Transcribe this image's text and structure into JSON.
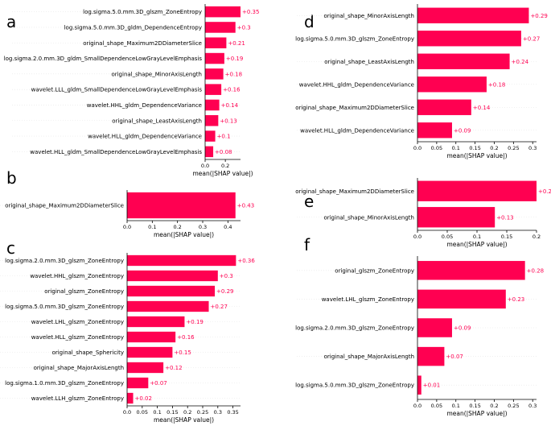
{
  "colors": {
    "bar": "#ff0051",
    "value_text": "#ff0051",
    "axis": "#000000",
    "row_line": "#e6e6e6"
  },
  "chart_data": [
    {
      "id": "a",
      "letter": "a",
      "type": "bar",
      "orientation": "horizontal",
      "xlabel": "mean(|SHAP value|)",
      "xlim": [
        0,
        0.35
      ],
      "xticks": [
        0.0,
        0.2
      ],
      "categories": [
        "log.sigma.5.0.mm.3D_glszm_ZoneEntropy",
        "log.sigma.5.0.mm.3D_gldm_DependenceEntropy",
        "original_shape_Maximum2DDiameterSlice",
        "log.sigma.2.0.mm.3D_gldm_SmallDependenceLowGrayLevelEmphasis",
        "original_shape_MinorAxisLength",
        "wavelet.LLL_gldm_SmallDependenceLowGrayLevelEmphasis",
        "wavelet.HHL_gldm_DependenceVariance",
        "original_shape_LeastAxisLength",
        "wavelet.HLL_gldm_DependenceVariance",
        "wavelet.HLL_gldm_SmallDependenceLowGrayLevelEmphasis"
      ],
      "values": [
        0.35,
        0.3,
        0.21,
        0.19,
        0.18,
        0.16,
        0.14,
        0.13,
        0.1,
        0.08
      ],
      "value_labels": [
        "+0.35",
        "+0.3",
        "+0.21",
        "+0.19",
        "+0.18",
        "+0.16",
        "+0.14",
        "+0.13",
        "+0.1",
        "+0.08"
      ]
    },
    {
      "id": "b",
      "letter": "b",
      "type": "bar",
      "orientation": "horizontal",
      "xlabel": "mean(|SHAP value|)",
      "xlim": [
        0,
        0.45
      ],
      "xticks": [
        0.0,
        0.1,
        0.2,
        0.3,
        0.4
      ],
      "categories": [
        "original_shape_Maximum2DDiameterSlice"
      ],
      "values": [
        0.43
      ],
      "value_labels": [
        "+0.43"
      ]
    },
    {
      "id": "c",
      "letter": "c",
      "type": "bar",
      "orientation": "horizontal",
      "xlabel": "mean(|SHAP value|)",
      "xlim": [
        0,
        0.375
      ],
      "xticks": [
        0.0,
        0.05,
        0.1,
        0.15,
        0.2,
        0.25,
        0.3,
        0.35
      ],
      "categories": [
        "log.sigma.2.0.mm.3D_glszm_ZoneEntropy",
        "wavelet.HHL_glszm_ZoneEntropy",
        "original_glszm_ZoneEntropy",
        "log.sigma.5.0.mm.3D_glszm_ZoneEntropy",
        "wavelet.LHL_glszm_ZoneEntropy",
        "wavelet.HLL_glszm_ZoneEntropy",
        "original_shape_Sphericity",
        "original_shape_MajorAxisLength",
        "log.sigma.1.0.mm.3D_glszm_ZoneEntropy",
        "wavelet.LLH_glszm_ZoneEntropy"
      ],
      "values": [
        0.36,
        0.3,
        0.29,
        0.27,
        0.19,
        0.16,
        0.15,
        0.12,
        0.07,
        0.02
      ],
      "value_labels": [
        "+0.36",
        "+0.3",
        "+0.29",
        "+0.27",
        "+0.19",
        "+0.16",
        "+0.15",
        "+0.12",
        "+0.07",
        "+0.02"
      ]
    },
    {
      "id": "d",
      "letter": "d",
      "type": "bar",
      "orientation": "horizontal",
      "xlabel": "mean(|SHAP value|)",
      "xlim": [
        0,
        0.31
      ],
      "xticks": [
        0.0,
        0.05,
        0.1,
        0.15,
        0.2,
        0.25,
        0.3
      ],
      "categories": [
        "original_shape_MinorAxisLength",
        "log.sigma.5.0.mm.3D_glszm_ZoneEntropy",
        "original_shape_LeastAxisLength",
        "wavelet.HHL_gldm_DependenceVariance",
        "original_shape_Maximum2DDiameterSlice",
        "wavelet.HLL_gldm_DependenceVariance"
      ],
      "values": [
        0.29,
        0.27,
        0.24,
        0.18,
        0.14,
        0.09
      ],
      "value_labels": [
        "+0.29",
        "+0.27",
        "+0.24",
        "+0.18",
        "+0.14",
        "+0.09"
      ]
    },
    {
      "id": "e",
      "letter": "e",
      "type": "bar",
      "orientation": "horizontal",
      "xlabel": "mean(|SHAP value|)",
      "xlim": [
        0,
        0.2
      ],
      "xticks": [
        0.0,
        0.05,
        0.1,
        0.15,
        0.2
      ],
      "categories": [
        "original_shape_Maximum2DDiameterSlice",
        "original_shape_MinorAxisLength"
      ],
      "values": [
        0.2,
        0.13
      ],
      "value_labels": [
        "+0.2",
        "+0.13"
      ]
    },
    {
      "id": "f",
      "letter": "f",
      "type": "bar",
      "orientation": "horizontal",
      "xlabel": "mean(|SHAP value|)",
      "xlim": [
        0,
        0.31
      ],
      "xticks": [
        0.0,
        0.05,
        0.1,
        0.15,
        0.2,
        0.25,
        0.3
      ],
      "categories": [
        "original_glszm_ZoneEntropy",
        "wavelet.LHL_glszm_ZoneEntropy",
        "log.sigma.2.0.mm.3D_glszm_ZoneEntropy",
        "original_shape_MajorAxisLength",
        "log.sigma.5.0.mm.3D_glszm_ZoneEntropy"
      ],
      "values": [
        0.28,
        0.23,
        0.09,
        0.07,
        0.01
      ],
      "value_labels": [
        "+0.28",
        "+0.23",
        "+0.09",
        "+0.07",
        "+0.01"
      ]
    }
  ]
}
